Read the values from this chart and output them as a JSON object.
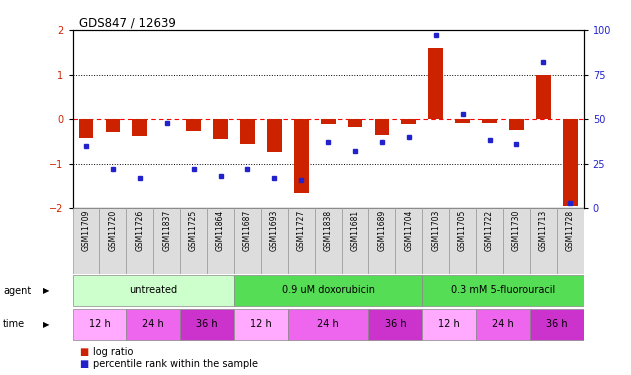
{
  "title": "GDS847 / 12639",
  "samples": [
    "GSM11709",
    "GSM11720",
    "GSM11726",
    "GSM11837",
    "GSM11725",
    "GSM11864",
    "GSM11687",
    "GSM11693",
    "GSM11727",
    "GSM11838",
    "GSM11681",
    "GSM11689",
    "GSM11704",
    "GSM11703",
    "GSM11705",
    "GSM11722",
    "GSM11730",
    "GSM11713",
    "GSM11728"
  ],
  "log_ratio": [
    -0.42,
    -0.28,
    -0.38,
    0.0,
    -0.27,
    -0.45,
    -0.55,
    -0.75,
    -1.65,
    -0.12,
    -0.18,
    -0.35,
    -0.12,
    1.6,
    -0.08,
    -0.08,
    -0.25,
    1.0,
    -1.95
  ],
  "percentile_rank": [
    35,
    22,
    17,
    48,
    22,
    18,
    22,
    17,
    16,
    37,
    32,
    37,
    40,
    97,
    53,
    38,
    36,
    82,
    3
  ],
  "agents": [
    {
      "label": "untreated",
      "color": "#ccffcc",
      "start": 0,
      "end": 6
    },
    {
      "label": "0.9 uM doxorubicin",
      "color": "#55dd55",
      "start": 6,
      "end": 13
    },
    {
      "label": "0.3 mM 5-fluorouracil",
      "color": "#55dd55",
      "start": 13,
      "end": 19
    }
  ],
  "times": [
    {
      "label": "12 h",
      "color": "#ffaaff",
      "start": 0,
      "end": 2
    },
    {
      "label": "24 h",
      "color": "#ee66ee",
      "start": 2,
      "end": 4
    },
    {
      "label": "36 h",
      "color": "#cc33cc",
      "start": 4,
      "end": 6
    },
    {
      "label": "12 h",
      "color": "#ffaaff",
      "start": 6,
      "end": 8
    },
    {
      "label": "24 h",
      "color": "#ee66ee",
      "start": 8,
      "end": 11
    },
    {
      "label": "36 h",
      "color": "#cc33cc",
      "start": 11,
      "end": 13
    },
    {
      "label": "12 h",
      "color": "#ffaaff",
      "start": 13,
      "end": 15
    },
    {
      "label": "24 h",
      "color": "#ee66ee",
      "start": 15,
      "end": 17
    },
    {
      "label": "36 h",
      "color": "#cc33cc",
      "start": 17,
      "end": 19
    }
  ],
  "bar_color": "#cc2200",
  "dot_color": "#2222cc",
  "ylim_left": [
    -2,
    2
  ],
  "ylim_right": [
    0,
    100
  ],
  "yticks_left": [
    -2,
    -1,
    0,
    1,
    2
  ],
  "yticks_right": [
    0,
    25,
    50,
    75,
    100
  ],
  "legend_log_ratio": "log ratio",
  "legend_pct": "percentile rank within the sample"
}
